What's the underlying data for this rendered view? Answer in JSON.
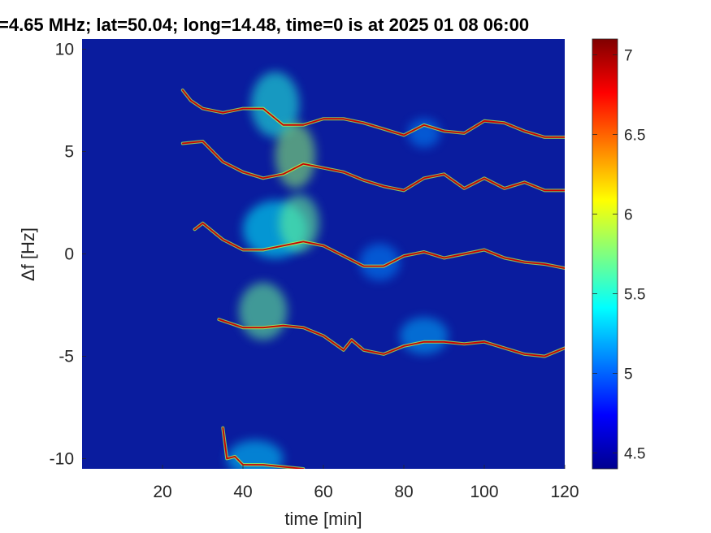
{
  "chart_data": {
    "type": "heatmap",
    "title": "=4.65 MHz;  lat=50.04; long=14.48, time=0 is at 2025 01 08 06:00",
    "xlabel": "time [min]",
    "ylabel": "Δf [Hz]",
    "xlim": [
      0,
      120
    ],
    "ylim": [
      -10.5,
      10.5
    ],
    "xticks": [
      20,
      40,
      60,
      80,
      100,
      120
    ],
    "yticks": [
      -10,
      -5,
      0,
      5,
      10
    ],
    "colorbar": {
      "clim": [
        4.4,
        7.1
      ],
      "ticks": [
        4.5,
        5,
        5.5,
        6,
        6.5,
        7
      ],
      "colormap": "jet"
    },
    "background_color": "#0a1c9e",
    "series": [
      {
        "x": [
          25,
          27,
          30,
          35,
          40,
          45,
          50,
          55,
          60,
          65,
          70,
          75,
          80,
          85,
          90,
          95,
          100,
          105,
          110,
          115,
          120
        ],
        "y": [
          8.0,
          7.5,
          7.1,
          6.9,
          7.1,
          7.1,
          6.3,
          6.3,
          6.6,
          6.6,
          6.4,
          6.1,
          5.8,
          6.3,
          6.0,
          5.9,
          6.5,
          6.4,
          6.0,
          5.7,
          5.7
        ]
      },
      {
        "x": [
          25,
          30,
          35,
          40,
          45,
          50,
          55,
          60,
          65,
          70,
          75,
          80,
          85,
          90,
          95,
          100,
          105,
          110,
          115,
          120
        ],
        "y": [
          5.4,
          5.5,
          4.5,
          4.0,
          3.7,
          3.9,
          4.4,
          4.2,
          4.0,
          3.6,
          3.3,
          3.1,
          3.7,
          3.9,
          3.2,
          3.7,
          3.2,
          3.5,
          3.1,
          3.1
        ]
      },
      {
        "x": [
          28,
          30,
          35,
          40,
          45,
          50,
          55,
          60,
          65,
          70,
          75,
          80,
          85,
          90,
          95,
          100,
          105,
          110,
          115,
          120
        ],
        "y": [
          1.2,
          1.5,
          0.7,
          0.2,
          0.2,
          0.4,
          0.6,
          0.4,
          -0.1,
          -0.6,
          -0.6,
          -0.1,
          0.1,
          -0.2,
          0.0,
          0.2,
          -0.2,
          -0.4,
          -0.5,
          -0.7
        ]
      },
      {
        "x": [
          34,
          40,
          45,
          50,
          55,
          60,
          65,
          67,
          70,
          75,
          80,
          85,
          90,
          95,
          100,
          105,
          110,
          115,
          120
        ],
        "y": [
          -3.2,
          -3.6,
          -3.6,
          -3.5,
          -3.6,
          -4.0,
          -4.7,
          -4.2,
          -4.7,
          -4.9,
          -4.5,
          -4.3,
          -4.3,
          -4.4,
          -4.3,
          -4.6,
          -4.9,
          -5.0,
          -4.6
        ]
      },
      {
        "x": [
          35,
          36,
          38,
          40,
          45,
          50,
          55
        ],
        "y": [
          -8.5,
          -10.0,
          -9.9,
          -10.3,
          -10.3,
          -10.4,
          -10.5
        ]
      }
    ],
    "blobs": [
      {
        "x": 48,
        "y": 7.3,
        "rx": 6,
        "ry": 1.6,
        "v": 5.5
      },
      {
        "x": 53,
        "y": 4.8,
        "rx": 5,
        "ry": 1.6,
        "v": 5.8
      },
      {
        "x": 48,
        "y": 1.2,
        "rx": 8,
        "ry": 1.4,
        "v": 5.4
      },
      {
        "x": 54,
        "y": 1.5,
        "rx": 5,
        "ry": 1.4,
        "v": 5.7
      },
      {
        "x": 45,
        "y": -2.8,
        "rx": 6,
        "ry": 1.4,
        "v": 5.7
      },
      {
        "x": 43,
        "y": -10.0,
        "rx": 7,
        "ry": 0.9,
        "v": 5.3
      },
      {
        "x": 85,
        "y": -4.0,
        "rx": 6,
        "ry": 0.9,
        "v": 5.2
      },
      {
        "x": 85,
        "y": 5.9,
        "rx": 4,
        "ry": 0.7,
        "v": 5.1
      },
      {
        "x": 74,
        "y": -0.4,
        "rx": 5,
        "ry": 0.9,
        "v": 5.1
      }
    ]
  }
}
